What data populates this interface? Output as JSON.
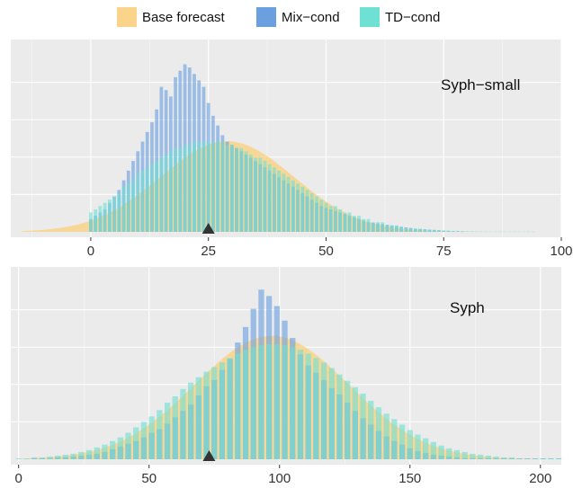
{
  "legend": {
    "items": [
      {
        "label": "Base forecast",
        "color": "#F9D48A"
      },
      {
        "label": "Mix−cond",
        "color": "#6A9FE0"
      },
      {
        "label": "TD−cond",
        "color": "#6FE0D4"
      }
    ]
  },
  "chart_data": [
    {
      "type": "bar",
      "title": "",
      "panel_label": "Syph−small",
      "xlabel": "",
      "ylabel": "",
      "xlim": [
        -17,
        100
      ],
      "ylim": [
        0,
        0.058
      ],
      "xticks": [
        0,
        25,
        50,
        75,
        100
      ],
      "grid": true,
      "observed_marker_x": 25,
      "base_forecast_density": {
        "mean": 29,
        "sd": 14.2
      },
      "series": [
        {
          "name": "Mix−cond",
          "x_start": 0,
          "x_step": 1,
          "values": [
            0.004,
            0.005,
            0.006,
            0.007,
            0.009,
            0.011,
            0.013,
            0.016,
            0.019,
            0.022,
            0.025,
            0.028,
            0.031,
            0.034,
            0.038,
            0.045,
            0.044,
            0.042,
            0.048,
            0.05,
            0.052,
            0.051,
            0.049,
            0.047,
            0.045,
            0.04,
            0.036,
            0.033,
            0.03,
            0.028,
            0.027,
            0.026,
            0.025,
            0.024,
            0.023,
            0.022,
            0.021,
            0.02,
            0.019,
            0.018,
            0.017,
            0.016,
            0.015,
            0.014,
            0.013,
            0.012,
            0.011,
            0.01,
            0.009,
            0.008,
            0.0075,
            0.007,
            0.0065,
            0.006,
            0.0055,
            0.005,
            0.0045,
            0.004,
            0.0035,
            0.003,
            0.0028,
            0.0026,
            0.0024,
            0.0022,
            0.002,
            0.0018,
            0.0016,
            0.0014,
            0.0012,
            0.001,
            0.0009,
            0.0008,
            0.0007,
            0.0006,
            0.0005,
            0.0004,
            0.0003,
            0.0002,
            0.0002,
            0.0001
          ]
        },
        {
          "name": "TD−cond",
          "x_start": 0,
          "x_step": 1,
          "values": [
            0.006,
            0.007,
            0.008,
            0.009,
            0.01,
            0.011,
            0.012,
            0.014,
            0.015,
            0.016,
            0.018,
            0.019,
            0.02,
            0.021,
            0.022,
            0.023,
            0.024,
            0.025,
            0.026,
            0.026,
            0.027,
            0.027,
            0.028,
            0.028,
            0.028,
            0.028,
            0.028,
            0.028,
            0.028,
            0.027,
            0.027,
            0.026,
            0.026,
            0.025,
            0.024,
            0.023,
            0.023,
            0.022,
            0.021,
            0.02,
            0.019,
            0.018,
            0.017,
            0.016,
            0.015,
            0.014,
            0.013,
            0.012,
            0.011,
            0.01,
            0.009,
            0.008,
            0.008,
            0.007,
            0.006,
            0.006,
            0.005,
            0.005,
            0.004,
            0.004,
            0.003,
            0.003,
            0.003,
            0.002,
            0.002,
            0.002,
            0.0015,
            0.0013,
            0.0011,
            0.001,
            0.0009,
            0.0008,
            0.0007,
            0.0006,
            0.0005,
            0.0004,
            0.0004,
            0.0003,
            0.0003,
            0.0002,
            0.0002,
            0.0002,
            0.0001,
            0.0001,
            0.0001,
            0.0001,
            0.0001,
            0.0001,
            0.0001,
            0.0001,
            0.0001,
            0.0001,
            0.0001,
            0.0001,
            0.0001
          ]
        }
      ]
    },
    {
      "type": "bar",
      "title": "",
      "panel_label": "Syph",
      "xlabel": "",
      "ylabel": "",
      "xlim": [
        -3,
        208
      ],
      "ylim": [
        0,
        0.0205
      ],
      "xticks": [
        0,
        50,
        100,
        150,
        200
      ],
      "grid": true,
      "observed_marker_x": 73,
      "base_forecast_density": {
        "mean": 97,
        "sd": 29.5
      },
      "series": [
        {
          "name": "Mix−cond",
          "x_start": 0,
          "x_step": 3,
          "values": [
            0,
            0,
            0.0001,
            0.0001,
            0.0001,
            0.0002,
            0.0002,
            0.0003,
            0.0004,
            0.0005,
            0.0006,
            0.0008,
            0.0011,
            0.0014,
            0.0017,
            0.002,
            0.0024,
            0.0029,
            0.0033,
            0.0039,
            0.0046,
            0.0053,
            0.006,
            0.007,
            0.008,
            0.0087,
            0.0098,
            0.011,
            0.0128,
            0.0145,
            0.0165,
            0.0186,
            0.0179,
            0.0168,
            0.0152,
            0.0133,
            0.0115,
            0.0103,
            0.0095,
            0.0087,
            0.0078,
            0.0071,
            0.0062,
            0.0053,
            0.0045,
            0.0038,
            0.0031,
            0.0025,
            0.002,
            0.0016,
            0.0012,
            0.0009,
            0.0007,
            0.0005,
            0.0004,
            0.0003,
            0.0002,
            0.0001,
            0.0001,
            0.0001,
            0.0001,
            0.0001,
            0.0001,
            0.0001,
            0.0001,
            0.0001,
            0.0001,
            0.0001,
            0.0001,
            0.0001
          ]
        },
        {
          "name": "TD−cond",
          "x_start": 0,
          "x_step": 3,
          "values": [
            0.0001,
            0.0001,
            0.0002,
            0.0002,
            0.0003,
            0.0004,
            0.0005,
            0.0006,
            0.0008,
            0.001,
            0.0013,
            0.0016,
            0.002,
            0.0024,
            0.0029,
            0.0035,
            0.0041,
            0.0047,
            0.0054,
            0.0062,
            0.0069,
            0.0077,
            0.0084,
            0.009,
            0.0096,
            0.0101,
            0.0106,
            0.0111,
            0.0116,
            0.012,
            0.0123,
            0.0125,
            0.0126,
            0.0126,
            0.0125,
            0.0123,
            0.012,
            0.0116,
            0.0111,
            0.0106,
            0.01,
            0.0093,
            0.0086,
            0.0079,
            0.0072,
            0.0064,
            0.0057,
            0.005,
            0.0044,
            0.0038,
            0.0032,
            0.0027,
            0.0023,
            0.0019,
            0.0015,
            0.0012,
            0.001,
            0.0008,
            0.0006,
            0.0005,
            0.0004,
            0.0003,
            0.0002,
            0.0002,
            0.0001,
            0.0001,
            0.0001,
            0.0001,
            0.0001,
            0.0001
          ]
        }
      ]
    }
  ]
}
